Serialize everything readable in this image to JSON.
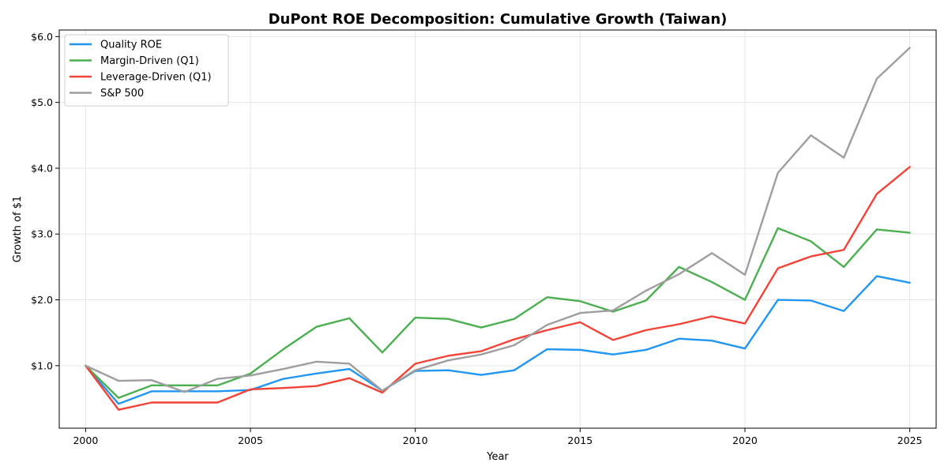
{
  "chart_data": {
    "type": "line",
    "title": "DuPont ROE Decomposition: Cumulative Growth (Taiwan)",
    "xlabel": "Year",
    "ylabel": "Growth of $1",
    "xlim": [
      1999.2,
      2025.8
    ],
    "ylim": [
      0.05,
      6.1
    ],
    "xticks": [
      2000,
      2005,
      2010,
      2015,
      2020,
      2025
    ],
    "yticks": [
      1.0,
      2.0,
      3.0,
      4.0,
      5.0,
      6.0
    ],
    "ytick_labels": [
      "$1.0",
      "$2.0",
      "$3.0",
      "$4.0",
      "$5.0",
      "$6.0"
    ],
    "grid": true,
    "legend_position": "top-left",
    "x": [
      2000,
      2001,
      2002,
      2003,
      2004,
      2005,
      2006,
      2007,
      2008,
      2009,
      2010,
      2011,
      2012,
      2013,
      2014,
      2015,
      2016,
      2017,
      2018,
      2019,
      2020,
      2021,
      2022,
      2023,
      2024,
      2025
    ],
    "series": [
      {
        "name": "Quality ROE",
        "color": "#2196F3",
        "values": [
          1.0,
          0.42,
          0.61,
          0.61,
          0.61,
          0.63,
          0.8,
          0.88,
          0.95,
          0.62,
          0.92,
          0.93,
          0.86,
          0.93,
          1.25,
          1.24,
          1.17,
          1.24,
          1.41,
          1.38,
          1.26,
          2.0,
          1.99,
          1.83,
          2.36,
          2.26
        ]
      },
      {
        "name": "Margin-Driven (Q1)",
        "color": "#4CAF50",
        "values": [
          1.0,
          0.51,
          0.7,
          0.7,
          0.7,
          0.88,
          1.25,
          1.59,
          1.72,
          1.2,
          1.73,
          1.71,
          1.58,
          1.71,
          2.04,
          1.98,
          1.82,
          1.99,
          2.5,
          2.27,
          2.0,
          3.09,
          2.89,
          2.5,
          3.07,
          3.02
        ]
      },
      {
        "name": "Leverage-Driven (Q1)",
        "color": "#F44336",
        "values": [
          1.0,
          0.33,
          0.44,
          0.44,
          0.44,
          0.64,
          0.66,
          0.69,
          0.81,
          0.59,
          1.03,
          1.15,
          1.22,
          1.4,
          1.54,
          1.66,
          1.39,
          1.54,
          1.63,
          1.75,
          1.64,
          2.48,
          2.66,
          2.76,
          3.61,
          4.02
        ]
      },
      {
        "name": "S&P 500",
        "color": "#9E9E9E",
        "values": [
          1.0,
          0.77,
          0.78,
          0.6,
          0.8,
          0.85,
          0.95,
          1.06,
          1.03,
          0.62,
          0.93,
          1.08,
          1.17,
          1.31,
          1.62,
          1.8,
          1.84,
          2.14,
          2.39,
          2.71,
          2.38,
          3.93,
          4.5,
          4.16,
          5.36,
          5.83
        ]
      }
    ]
  }
}
